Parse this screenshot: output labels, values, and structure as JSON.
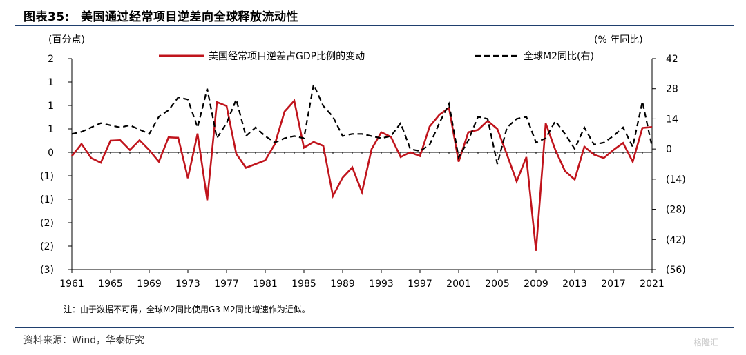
{
  "figure": {
    "number": "图表35:",
    "title": "美国通过经常项目逆差向全球释放流动性",
    "note": "注：由于数据不可得，全球M2同比使用G3 M2同比增速作为近似。",
    "source": "资料来源：Wind，华泰研究",
    "watermark": "格隆汇"
  },
  "colors": {
    "us_line": "#c0141c",
    "m2_line": "#000000",
    "axis": "#000000",
    "rule": "#1f3f6e"
  },
  "chart_data": {
    "type": "line",
    "title": "",
    "left_axis_unit": "(百分点)",
    "right_axis_unit": "(% 年同比)",
    "left_ticks": [
      "2",
      "1",
      "1",
      "1",
      "0",
      "(1)",
      "(1)",
      "(2)",
      "(2)",
      "(3)"
    ],
    "left_tick_values": [
      2.0,
      1.5,
      1.0,
      0.5,
      0.0,
      -0.5,
      -1.0,
      -1.5,
      -2.0,
      -2.5
    ],
    "ylim_left": [
      -2.5,
      2.0
    ],
    "right_ticks": [
      "42",
      "28",
      "14",
      "0",
      "(14)",
      "(28)",
      "(42)",
      "(56)"
    ],
    "right_tick_values": [
      42,
      28,
      14,
      0,
      -14,
      -28,
      -42,
      -56
    ],
    "ylim_right": [
      -56,
      42
    ],
    "x_ticks": [
      "1961",
      "1965",
      "1969",
      "1973",
      "1977",
      "1981",
      "1985",
      "1989",
      "1993",
      "1997",
      "2001",
      "2005",
      "2009",
      "2013",
      "2017",
      "2021"
    ],
    "x_tick_values": [
      1961,
      1965,
      1969,
      1973,
      1977,
      1981,
      1985,
      1989,
      1993,
      1997,
      2001,
      2005,
      2009,
      2013,
      2017,
      2021
    ],
    "xlim": [
      1961,
      2021
    ],
    "legend_position": "top",
    "series": [
      {
        "name": "美国经常项目逆差占GDP比例的变动",
        "axis": "left",
        "style": "solid",
        "x": [
          1961,
          1962,
          1963,
          1964,
          1965,
          1966,
          1967,
          1968,
          1969,
          1970,
          1971,
          1972,
          1973,
          1974,
          1975,
          1976,
          1977,
          1978,
          1979,
          1980,
          1981,
          1982,
          1983,
          1984,
          1985,
          1986,
          1987,
          1988,
          1989,
          1990,
          1991,
          1992,
          1993,
          1994,
          1995,
          1996,
          1997,
          1998,
          1999,
          2000,
          2001,
          2002,
          2003,
          2004,
          2005,
          2006,
          2007,
          2008,
          2009,
          2010,
          2011,
          2012,
          2013,
          2014,
          2015,
          2016,
          2017,
          2018,
          2019,
          2020,
          2021
        ],
        "values": [
          -0.08,
          0.18,
          -0.12,
          -0.22,
          0.25,
          0.26,
          0.05,
          0.26,
          0.05,
          -0.2,
          0.32,
          0.31,
          -0.55,
          0.4,
          -1.02,
          1.07,
          0.99,
          -0.03,
          -0.33,
          -0.25,
          -0.17,
          0.18,
          0.87,
          1.1,
          0.1,
          0.22,
          0.14,
          -0.93,
          -0.54,
          -0.32,
          -0.85,
          0.07,
          0.43,
          0.33,
          -0.1,
          0.0,
          -0.08,
          0.55,
          0.8,
          0.95,
          -0.2,
          0.43,
          0.48,
          0.67,
          0.5,
          -0.05,
          -0.62,
          -0.1,
          -2.1,
          0.62,
          0.05,
          -0.4,
          -0.58,
          0.12,
          -0.05,
          -0.12,
          0.05,
          0.2,
          -0.2,
          0.52,
          0.54
        ]
      },
      {
        "name": "全球M2同比(右)",
        "axis": "right",
        "style": "dashed",
        "x": [
          1961,
          1962,
          1963,
          1964,
          1965,
          1966,
          1967,
          1968,
          1969,
          1970,
          1971,
          1972,
          1973,
          1974,
          1975,
          1976,
          1977,
          1978,
          1979,
          1980,
          1981,
          1982,
          1983,
          1984,
          1985,
          1986,
          1987,
          1988,
          1989,
          1990,
          1991,
          1992,
          1993,
          1994,
          1995,
          1996,
          1997,
          1998,
          1999,
          2000,
          2001,
          2002,
          2003,
          2004,
          2005,
          2006,
          2007,
          2008,
          2009,
          2010,
          2011,
          2012,
          2013,
          2014,
          2015,
          2016,
          2017,
          2018,
          2019,
          2020,
          2021
        ],
        "values": [
          7,
          8,
          10,
          12,
          11,
          10,
          11,
          9,
          7,
          15,
          18,
          24,
          23,
          10,
          28,
          5,
          12,
          23,
          6,
          10,
          6,
          3,
          5,
          6,
          5,
          30,
          20,
          15,
          6,
          7,
          7,
          6,
          5,
          6,
          12,
          0,
          -1,
          2,
          12,
          21,
          -4,
          4,
          15,
          14,
          -7,
          10,
          14,
          15,
          3,
          5,
          13,
          7,
          0,
          10,
          2,
          3,
          6,
          10,
          1,
          22,
          1
        ]
      }
    ]
  }
}
